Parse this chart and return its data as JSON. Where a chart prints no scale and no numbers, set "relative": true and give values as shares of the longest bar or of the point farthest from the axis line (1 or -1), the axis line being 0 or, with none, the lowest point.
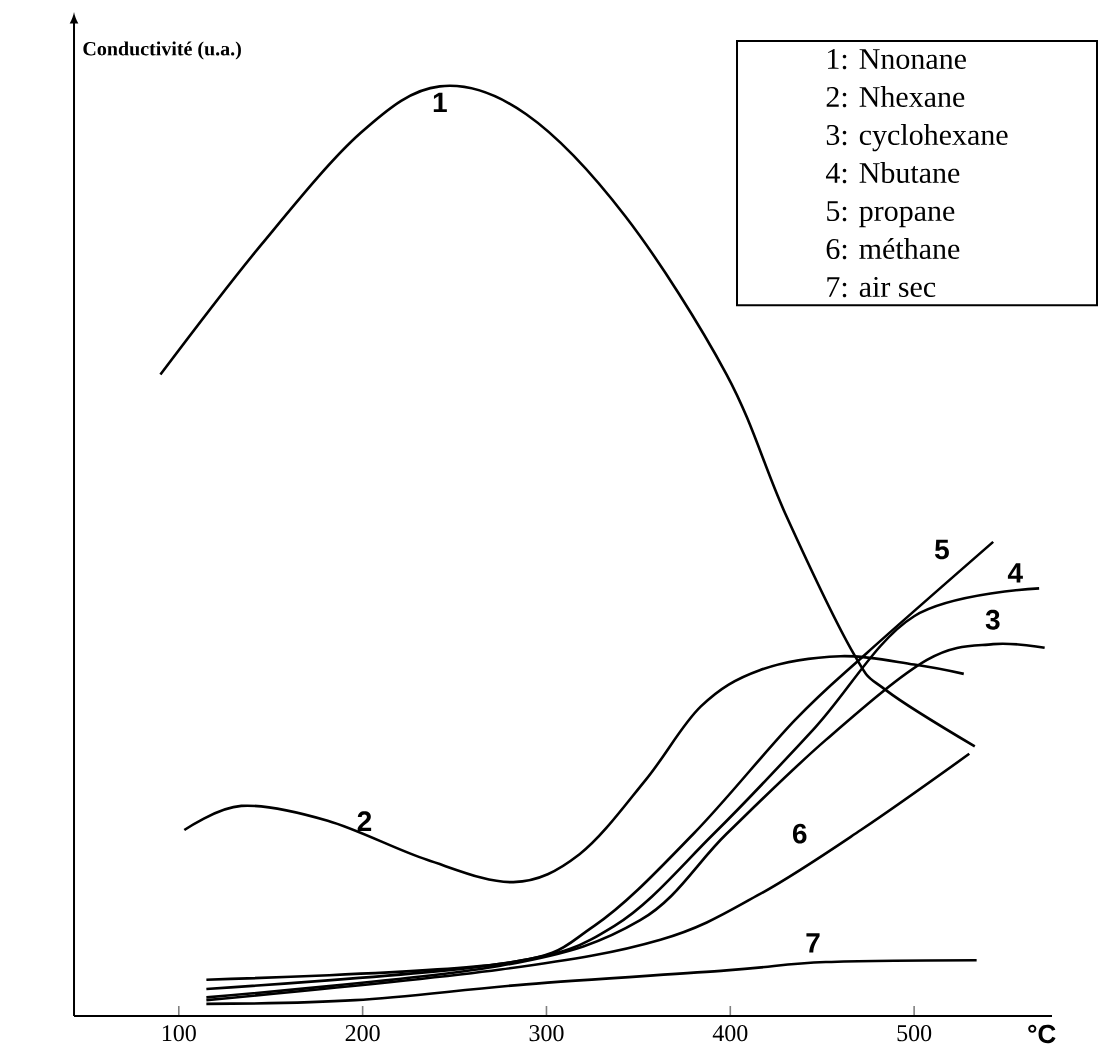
{
  "chart_data": {
    "type": "line",
    "relative": true,
    "xlabel": "°C",
    "ylabel": "Conductivité (u.a.)",
    "xlim": [
      43,
      575
    ],
    "xticks": [
      100,
      200,
      300,
      400,
      500
    ],
    "series": [
      {
        "color": "#000000",
        "x": [
          90,
          145,
          199,
          242,
          289,
          343,
          398,
          430,
          467,
          485,
          533
        ],
        "values": [
          0.69,
          0.83,
          0.95,
          1.0,
          0.97,
          0.86,
          0.69,
          0.54,
          0.39,
          0.35,
          0.29
        ]
      },
      {
        "color": "#000000",
        "x": [
          103,
          134,
          181,
          235,
          282,
          318,
          354,
          384,
          416,
          460,
          500,
          527
        ],
        "values": [
          0.2,
          0.226,
          0.21,
          0.168,
          0.144,
          0.174,
          0.254,
          0.333,
          0.372,
          0.387,
          0.378,
          0.368
        ]
      },
      {
        "color": "#000000",
        "x": [
          115,
          275,
          351,
          398,
          452,
          507,
          543,
          571
        ],
        "values": [
          0.02,
          0.054,
          0.103,
          0.196,
          0.297,
          0.383,
          0.4,
          0.396
        ]
      },
      {
        "color": "#000000",
        "x": [
          115,
          275,
          337,
          391,
          446,
          500,
          568
        ],
        "values": [
          0.029,
          0.056,
          0.097,
          0.196,
          0.31,
          0.43,
          0.46
        ]
      },
      {
        "color": "#000000",
        "x": [
          115,
          275,
          326,
          380,
          435,
          474,
          543
        ],
        "values": [
          0.039,
          0.056,
          0.097,
          0.196,
          0.318,
          0.39,
          0.51
        ]
      },
      {
        "color": "#000000",
        "x": [
          115,
          275,
          362,
          416,
          471,
          530
        ],
        "values": [
          0.017,
          0.05,
          0.082,
          0.131,
          0.2,
          0.282
        ]
      },
      {
        "color": "#000000",
        "x": [
          115,
          196,
          289,
          398,
          452,
          534
        ],
        "values": [
          0.013,
          0.017,
          0.034,
          0.049,
          0.058,
          0.06
        ]
      }
    ],
    "annotations": [
      {
        "text": "1",
        "x": 242,
        "y": 1.0
      },
      {
        "text": "2",
        "x": 201,
        "y": 0.19
      },
      {
        "text": "3",
        "x": 545,
        "y": 0.4
      },
      {
        "text": "4",
        "x": 555,
        "y": 0.455
      },
      {
        "text": "5",
        "x": 525,
        "y": 0.48
      },
      {
        "text": "6",
        "x": 452,
        "y": 0.17
      },
      {
        "text": "7",
        "x": 445,
        "y": 0.057
      },
      "1: Nnonane",
      "2: Nhexane",
      "3: cyclohexane",
      "4: Nbutane",
      "5: propane",
      "6: méthane",
      "7: air sec"
    ]
  }
}
